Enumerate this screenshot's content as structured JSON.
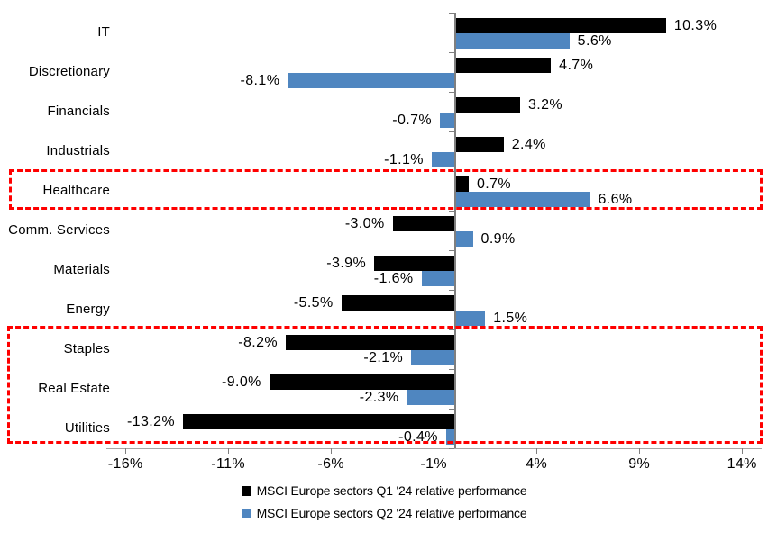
{
  "chart_data": {
    "type": "bar",
    "orientation": "horizontal",
    "title": "",
    "categories": [
      "IT",
      "Discretionary",
      "Financials",
      "Industrials",
      "Healthcare",
      "Comm. Services",
      "Materials",
      "Energy",
      "Staples",
      "Real Estate",
      "Utilities"
    ],
    "series": [
      {
        "name": "MSCI Europe sectors Q1 '24 relative performance",
        "color": "#000000",
        "values": [
          10.3,
          4.7,
          3.2,
          2.4,
          0.7,
          -3.0,
          -3.9,
          -5.5,
          -8.2,
          -9.0,
          -13.2
        ],
        "labels": [
          "10.3%",
          "4.7%",
          "3.2%",
          "2.4%",
          "0.7%",
          "-3.0%",
          "-3.9%",
          "-5.5%",
          "-8.2%",
          "-9.0%",
          "-13.2%"
        ]
      },
      {
        "name": "MSCI Europe sectors Q2 '24 relative performance",
        "color": "#4f86c0",
        "values": [
          5.6,
          -8.1,
          -0.7,
          -1.1,
          6.6,
          0.9,
          -1.6,
          1.5,
          -2.1,
          -2.3,
          -0.4
        ],
        "labels": [
          "5.6%",
          "-8.1%",
          "-0.7%",
          "-1.1%",
          "6.6%",
          "0.9%",
          "-1.6%",
          "1.5%",
          "-2.1%",
          "-2.3%",
          "-0.4%"
        ]
      }
    ],
    "x_axis": {
      "unit": "%",
      "tick_values": [
        -16,
        -11,
        -6,
        -1,
        4,
        9,
        14
      ],
      "tick_labels": [
        "-16%",
        "-11%",
        "-6%",
        "-1%",
        "4%",
        "9%",
        "14%"
      ]
    },
    "xlim": [
      -17,
      15
    ],
    "grid": false,
    "legend_position": "bottom",
    "axis_color": "#7f7f7f",
    "highlight_color": "#ff0000",
    "highlights": [
      {
        "label": "Healthcare",
        "first_row": 4,
        "last_row": 4
      },
      {
        "label": "Staples / Real Estate / Utilities",
        "first_row": 8,
        "last_row": 10
      }
    ]
  }
}
